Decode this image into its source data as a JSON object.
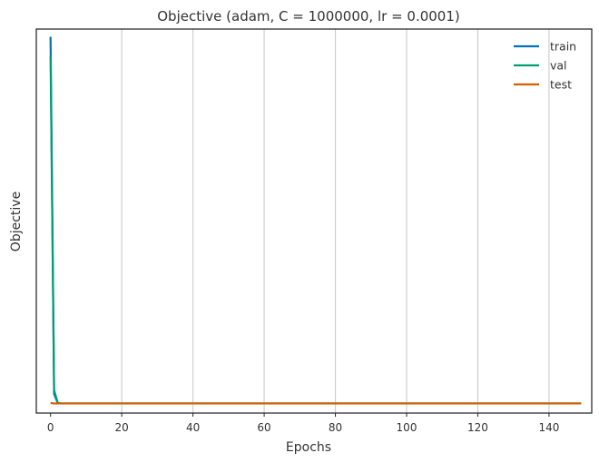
{
  "chart_data": {
    "type": "line",
    "title": "Objective (adam, C = 1000000, lr = 0.0001)",
    "xlabel": "Epochs",
    "ylabel": "Objective",
    "xlim": [
      -4,
      152
    ],
    "ylim": [
      0,
      100
    ],
    "xticks": [
      0,
      20,
      40,
      60,
      80,
      100,
      120,
      140
    ],
    "grid": "vertical",
    "legend_position": "top-right",
    "series": [
      {
        "name": "train",
        "color": "#0173b2",
        "x": [
          0,
          1,
          2,
          3,
          149
        ],
        "y": [
          98.0,
          5.0,
          2.6,
          2.5,
          2.5
        ]
      },
      {
        "name": "val",
        "color": "#029e73",
        "x": [
          0,
          1,
          2,
          3,
          149
        ],
        "y": [
          93.0,
          6.0,
          2.7,
          2.5,
          2.5
        ]
      },
      {
        "name": "test",
        "color": "#d55e00",
        "x": [
          0,
          1,
          2,
          3,
          149
        ],
        "y": [
          2.6,
          2.5,
          2.5,
          2.5,
          2.5
        ]
      }
    ]
  }
}
